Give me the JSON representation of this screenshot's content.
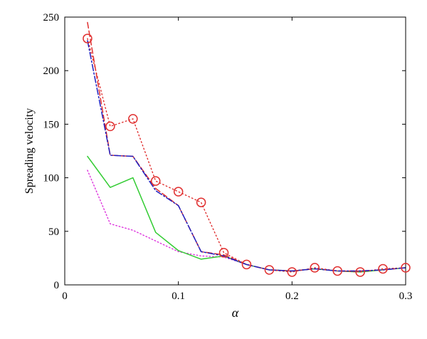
{
  "chart_data": {
    "type": "line",
    "title": "",
    "xlabel": "α",
    "ylabel": "Spreading velocity",
    "xlim": [
      0,
      0.3
    ],
    "ylim": [
      0,
      250
    ],
    "xticks": [
      0,
      0.1,
      0.2,
      0.3
    ],
    "xtick_labels": [
      "0",
      "0.1",
      "0.2",
      "0.3"
    ],
    "yticks": [
      0,
      50,
      100,
      150,
      200,
      250
    ],
    "ytick_labels": [
      "0",
      "50",
      "100",
      "150",
      "200",
      "250"
    ],
    "grid": false,
    "legend": "none",
    "series": [
      {
        "style": "red-dotted-circles",
        "color": "#e03030",
        "x": [
          0.02,
          0.04,
          0.06,
          0.08,
          0.1,
          0.12,
          0.14,
          0.16,
          0.18,
          0.2,
          0.22,
          0.24,
          0.26,
          0.28,
          0.3
        ],
        "y": [
          230,
          148,
          155,
          97,
          87,
          77,
          30,
          19,
          14,
          12,
          16,
          13,
          12,
          15,
          16
        ]
      },
      {
        "style": "red-dashed",
        "color": "#e03030",
        "x": [
          0.02,
          0.04,
          0.06,
          0.08,
          0.1,
          0.12,
          0.14,
          0.16,
          0.18,
          0.2,
          0.22,
          0.24,
          0.26,
          0.28,
          0.3
        ],
        "y": [
          245,
          121,
          120,
          90,
          74,
          31,
          28,
          19,
          14,
          13,
          15,
          13,
          13,
          14,
          16
        ]
      },
      {
        "style": "blue-dashdot",
        "color": "#2020c0",
        "x": [
          0.02,
          0.04,
          0.06,
          0.08,
          0.1,
          0.12,
          0.14,
          0.16,
          0.18,
          0.2,
          0.22,
          0.24,
          0.26,
          0.28,
          0.3
        ],
        "y": [
          228,
          121,
          120,
          88,
          74,
          31,
          27,
          19,
          14,
          13,
          15,
          13,
          13,
          14,
          16
        ]
      },
      {
        "style": "green-solid",
        "color": "#33cc33",
        "x": [
          0.02,
          0.04,
          0.06,
          0.08,
          0.1,
          0.12,
          0.14,
          0.16,
          0.18,
          0.2,
          0.22,
          0.24,
          0.26,
          0.28,
          0.3
        ],
        "y": [
          120,
          91,
          100,
          49,
          32,
          24,
          27,
          19,
          14,
          13,
          15,
          13,
          12,
          14,
          16
        ]
      },
      {
        "style": "magenta-dotted",
        "color": "#dd33dd",
        "x": [
          0.02,
          0.04,
          0.06,
          0.08,
          0.1,
          0.12,
          0.14,
          0.16,
          0.18,
          0.2,
          0.22,
          0.24,
          0.26,
          0.28,
          0.3
        ],
        "y": [
          107,
          57,
          51,
          41,
          31,
          27,
          26,
          19,
          14,
          13,
          15,
          13,
          12,
          14,
          16
        ]
      }
    ]
  }
}
